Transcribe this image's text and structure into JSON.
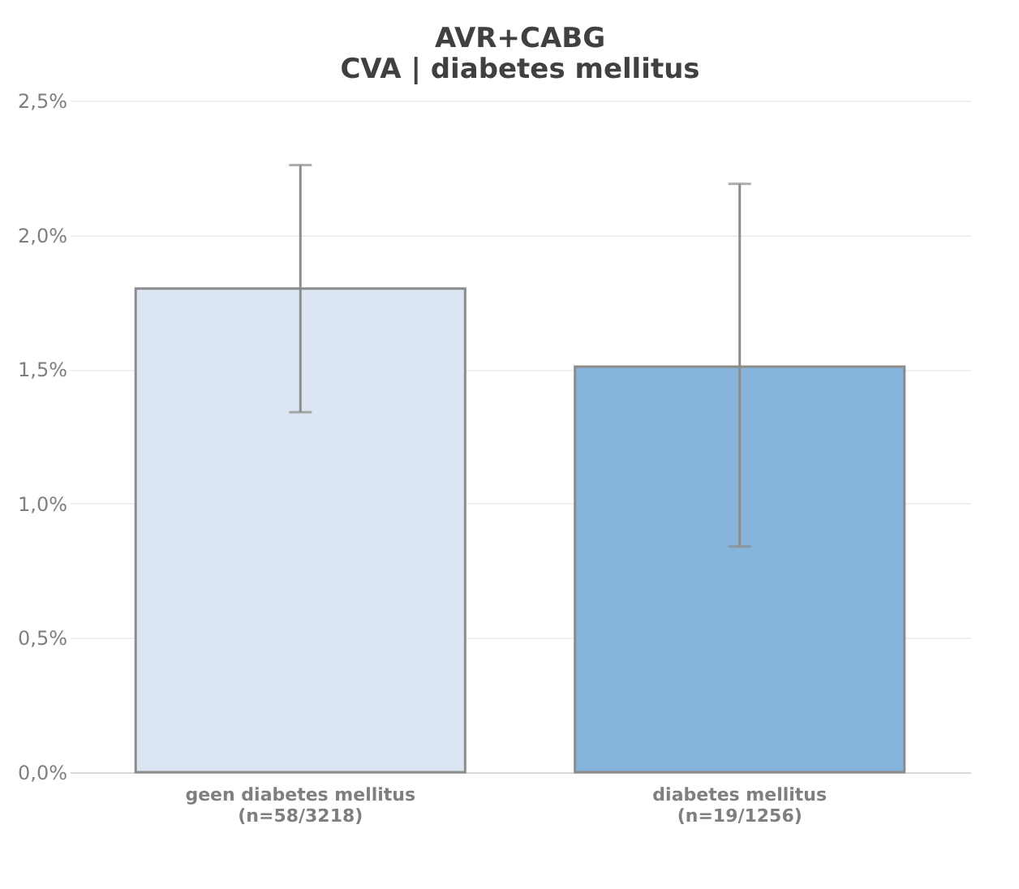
{
  "chart_data": {
    "type": "bar",
    "title": "AVR+CABG\nCVA | diabetes mellitus",
    "categories": [
      "geen diabetes mellitus\n(n=58/3218)",
      "diabetes mellitus\n(n=19/1256)"
    ],
    "values": [
      1.8,
      1.51
    ],
    "colors": [
      "#dce6f2",
      "#85b3d9"
    ],
    "errors": [
      [
        1.34,
        2.26
      ],
      [
        0.84,
        2.19
      ]
    ],
    "ylim": [
      0,
      2.5
    ],
    "yticks": [
      {
        "value": 0,
        "label": "0,0%"
      },
      {
        "value": 0.5,
        "label": "0,5%"
      },
      {
        "value": 1,
        "label": "1,0%"
      },
      {
        "value": 1.5,
        "label": "1,5%"
      },
      {
        "value": 2,
        "label": "2,0%"
      },
      {
        "value": 2.5,
        "label": "2,5%"
      }
    ],
    "grid": "y"
  }
}
